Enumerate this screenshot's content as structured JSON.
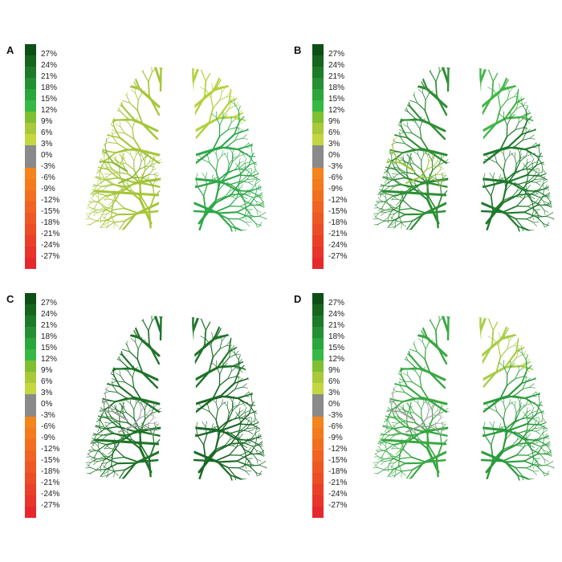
{
  "panels": [
    {
      "label": "A",
      "left_color": "#a6c63a",
      "right_color": "#b2d13b",
      "right_lower_color": "#2fa84a",
      "left_patch_color": "#8ab636"
    },
    {
      "label": "B",
      "left_color": "#2f8e36",
      "right_color": "#42b548",
      "right_lower_color": "#1e7a2b",
      "left_patch_color": "#9fc23a"
    },
    {
      "label": "C",
      "left_color": "#1f7329",
      "right_color": "#1f7329",
      "right_lower_color": "#1b6926",
      "left_patch_color": "#a0a0a0"
    },
    {
      "label": "D",
      "left_color": "#39a843",
      "right_color": "#a8cd45",
      "right_lower_color": "#2b9b3c",
      "left_patch_color": "#a0a0a0"
    }
  ],
  "colorbar": {
    "ticks": [
      "27%",
      "24%",
      "21%",
      "18%",
      "15%",
      "12%",
      "9%",
      "6%",
      "3%",
      "0%",
      "-3%",
      "-6%",
      "-9%",
      "-12%",
      "-15%",
      "-18%",
      "-21%",
      "-24%",
      "-27%"
    ],
    "colors": [
      "#0d4f17",
      "#15651f",
      "#1d7a28",
      "#249033",
      "#2ba63b",
      "#36b844",
      "#7fbf32",
      "#a9c83a",
      "#c4d640",
      "#8a8a8a",
      "#8a8a8a",
      "#f4841c",
      "#f47a1e",
      "#f26f20",
      "#f06322",
      "#ee5824",
      "#ec4c26",
      "#ea4028",
      "#e8342a",
      "#e6282c"
    ]
  }
}
